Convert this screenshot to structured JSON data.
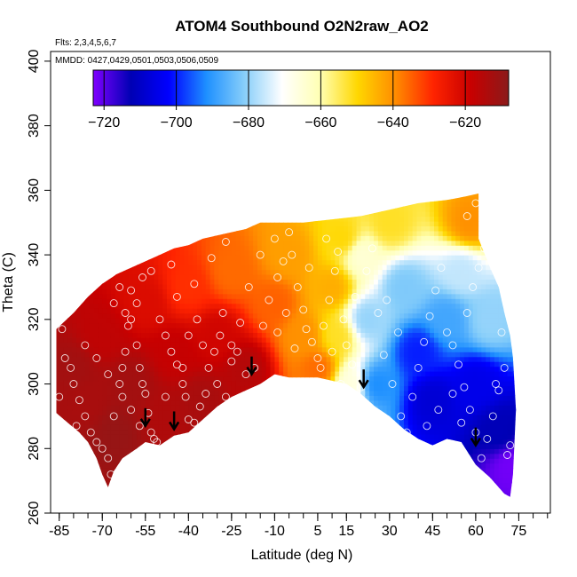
{
  "chart_data": {
    "type": "heatmap",
    "title": "ATOM4 Southbound O2N2raw_AO2",
    "flights_note": "Flts: 2,3,4,5,6,7",
    "dates_note": "MMDD: 0427,0429,0501,0503,0506,0509",
    "xlabel": "Latitude (deg N)",
    "ylabel": "Theta (C)",
    "xlim": [
      -88,
      86
    ],
    "ylim": [
      260,
      403
    ],
    "x_ticks": [
      -85,
      -70,
      -55,
      -40,
      -25,
      -10,
      5,
      15,
      30,
      45,
      60,
      75
    ],
    "x_minor_ticks": [
      -85,
      -80,
      -75,
      -70,
      -65,
      -60,
      -55,
      -50,
      -45,
      -40,
      -35,
      -30,
      -25,
      -20,
      -15,
      -10,
      -5,
      0,
      5,
      10,
      15,
      20,
      25,
      30,
      35,
      40,
      45,
      50,
      55,
      60,
      65,
      70,
      75,
      80,
      85
    ],
    "y_ticks": [
      260,
      280,
      300,
      320,
      340,
      360,
      380,
      400
    ],
    "colorbar": {
      "range": [
        -723,
        -608
      ],
      "ticks": [
        -720,
        -700,
        -680,
        -660,
        -640,
        -620
      ],
      "colors": [
        "#7f00ff",
        "#0000b4",
        "#0000ff",
        "#1e90ff",
        "#87cefa",
        "#ffffff",
        "#ffffb4",
        "#ffd700",
        "#ff8c00",
        "#ff2400",
        "#c80000",
        "#8b1a1a"
      ]
    },
    "upper_boundary": [
      [
        -86,
        317
      ],
      [
        -80,
        322
      ],
      [
        -75,
        327
      ],
      [
        -70,
        331
      ],
      [
        -65,
        334
      ],
      [
        -60,
        336
      ],
      [
        -55,
        338
      ],
      [
        -50,
        340
      ],
      [
        -45,
        342
      ],
      [
        -40,
        343
      ],
      [
        -35,
        345
      ],
      [
        -30,
        346
      ],
      [
        -25,
        347
      ],
      [
        -20,
        348
      ],
      [
        -15,
        350
      ],
      [
        -10,
        350
      ],
      [
        0,
        350
      ],
      [
        10,
        351
      ],
      [
        20,
        352
      ],
      [
        30,
        354
      ],
      [
        40,
        356
      ],
      [
        50,
        357
      ],
      [
        56,
        358
      ],
      [
        61,
        359
      ],
      [
        61,
        345
      ],
      [
        65,
        336
      ],
      [
        68,
        330
      ],
      [
        70,
        322
      ],
      [
        72,
        315
      ],
      [
        73,
        308
      ],
      [
        74,
        292
      ]
    ],
    "lower_boundary": [
      [
        -86,
        291
      ],
      [
        -82,
        288
      ],
      [
        -78,
        285
      ],
      [
        -75,
        282
      ],
      [
        -72,
        277
      ],
      [
        -70,
        272
      ],
      [
        -68,
        268
      ],
      [
        -66,
        273
      ],
      [
        -63,
        277
      ],
      [
        -58,
        280
      ],
      [
        -55,
        282
      ],
      [
        -50,
        281
      ],
      [
        -45,
        284
      ],
      [
        -40,
        285
      ],
      [
        -35,
        289
      ],
      [
        -30,
        293
      ],
      [
        -25,
        296
      ],
      [
        -20,
        298
      ],
      [
        -15,
        300
      ],
      [
        -10,
        303
      ],
      [
        -5,
        302
      ],
      [
        0,
        302
      ],
      [
        5,
        302
      ],
      [
        10,
        301
      ],
      [
        15,
        300
      ],
      [
        20,
        297
      ],
      [
        25,
        293
      ],
      [
        30,
        290
      ],
      [
        35,
        286
      ],
      [
        40,
        283
      ],
      [
        45,
        281
      ],
      [
        50,
        283
      ],
      [
        55,
        282
      ],
      [
        60,
        275
      ],
      [
        65,
        271
      ],
      [
        70,
        266
      ],
      [
        72,
        265
      ],
      [
        73,
        272
      ],
      [
        74,
        292
      ]
    ],
    "field_nodes": [
      {
        "x": -75,
        "y": 295,
        "v": -613
      },
      {
        "x": -70,
        "y": 315,
        "v": -617
      },
      {
        "x": -65,
        "y": 285,
        "v": -610
      },
      {
        "x": -60,
        "y": 300,
        "v": -612
      },
      {
        "x": -55,
        "y": 325,
        "v": -622
      },
      {
        "x": -50,
        "y": 290,
        "v": -614
      },
      {
        "x": -45,
        "y": 310,
        "v": -618
      },
      {
        "x": -40,
        "y": 330,
        "v": -630
      },
      {
        "x": -35,
        "y": 295,
        "v": -613
      },
      {
        "x": -30,
        "y": 315,
        "v": -620
      },
      {
        "x": -25,
        "y": 335,
        "v": -636
      },
      {
        "x": -20,
        "y": 305,
        "v": -615
      },
      {
        "x": -10,
        "y": 325,
        "v": -635
      },
      {
        "x": -5,
        "y": 340,
        "v": -642
      },
      {
        "x": 0,
        "y": 315,
        "v": -640
      },
      {
        "x": 5,
        "y": 305,
        "v": -636
      },
      {
        "x": 10,
        "y": 330,
        "v": -644
      },
      {
        "x": 14,
        "y": 345,
        "v": -650
      },
      {
        "x": 20,
        "y": 340,
        "v": -665
      },
      {
        "x": 22,
        "y": 320,
        "v": -680
      },
      {
        "x": 25,
        "y": 300,
        "v": -692
      },
      {
        "x": 35,
        "y": 330,
        "v": -682
      },
      {
        "x": 40,
        "y": 310,
        "v": -700
      },
      {
        "x": 45,
        "y": 295,
        "v": -708
      },
      {
        "x": 50,
        "y": 320,
        "v": -688
      },
      {
        "x": 55,
        "y": 335,
        "v": -676
      },
      {
        "x": 60,
        "y": 300,
        "v": -705
      },
      {
        "x": 65,
        "y": 320,
        "v": -680
      },
      {
        "x": 68,
        "y": 285,
        "v": -712
      },
      {
        "x": 72,
        "y": 275,
        "v": -722
      },
      {
        "x": 58,
        "y": 350,
        "v": -640
      },
      {
        "x": 30,
        "y": 350,
        "v": -652
      },
      {
        "x": -80,
        "y": 305,
        "v": -612
      },
      {
        "x": 17,
        "y": 300,
        "v": -666
      },
      {
        "x": 12,
        "y": 315,
        "v": -652
      }
    ],
    "sample_points": [
      [
        -84,
        317
      ],
      [
        -83,
        308
      ],
      [
        -81,
        305
      ],
      [
        -80,
        300
      ],
      [
        -78,
        295
      ],
      [
        -76,
        290
      ],
      [
        -74,
        285
      ],
      [
        -72,
        282
      ],
      [
        -70,
        280
      ],
      [
        -68,
        277
      ],
      [
        -67,
        272
      ],
      [
        -66,
        290
      ],
      [
        -64,
        300
      ],
      [
        -63,
        305
      ],
      [
        -62,
        310
      ],
      [
        -61,
        318
      ],
      [
        -60,
        320
      ],
      [
        -58,
        312
      ],
      [
        -57,
        305
      ],
      [
        -56,
        300
      ],
      [
        -55,
        297
      ],
      [
        -54,
        291
      ],
      [
        -53,
        285
      ],
      [
        -52,
        283
      ],
      [
        -51,
        282
      ],
      [
        -66,
        325
      ],
      [
        -64,
        330
      ],
      [
        -62,
        322
      ],
      [
        -60,
        329
      ],
      [
        -58,
        325
      ],
      [
        -56,
        333
      ],
      [
        -53,
        335
      ],
      [
        -50,
        320
      ],
      [
        -48,
        315
      ],
      [
        -46,
        310
      ],
      [
        -44,
        306
      ],
      [
        -42,
        300
      ],
      [
        -41,
        296
      ],
      [
        -40,
        289
      ],
      [
        -38,
        288
      ],
      [
        -36,
        293
      ],
      [
        -34,
        297
      ],
      [
        -31,
        310
      ],
      [
        -29,
        315
      ],
      [
        -28,
        322
      ],
      [
        -25,
        312
      ],
      [
        -22,
        319
      ],
      [
        -19,
        330
      ],
      [
        -20,
        303
      ],
      [
        -17,
        305
      ],
      [
        -14,
        318
      ],
      [
        -12,
        326
      ],
      [
        -9,
        333
      ],
      [
        -7,
        338
      ],
      [
        -5,
        347
      ],
      [
        -4,
        340
      ],
      [
        -2,
        330
      ],
      [
        0,
        323
      ],
      [
        1,
        317
      ],
      [
        3,
        313
      ],
      [
        5,
        308
      ],
      [
        7,
        318
      ],
      [
        9,
        326
      ],
      [
        11,
        335
      ],
      [
        12,
        341
      ],
      [
        14,
        320
      ],
      [
        15,
        312
      ],
      [
        13,
        300
      ],
      [
        16,
        296
      ],
      [
        18,
        292
      ],
      [
        20,
        299
      ],
      [
        17,
        306
      ],
      [
        -46,
        337
      ],
      [
        -44,
        327
      ],
      [
        -40,
        315
      ],
      [
        -37,
        320
      ],
      [
        -33,
        305
      ],
      [
        -30,
        300
      ],
      [
        -25,
        307
      ],
      [
        -23,
        310
      ],
      [
        -15,
        340
      ],
      [
        -10,
        345
      ],
      [
        -6,
        322
      ],
      [
        2,
        336
      ],
      [
        8,
        345
      ],
      [
        22,
        335
      ],
      [
        26,
        322
      ],
      [
        28,
        309
      ],
      [
        31,
        300
      ],
      [
        34,
        290
      ],
      [
        36,
        285
      ],
      [
        38,
        296
      ],
      [
        40,
        305
      ],
      [
        42,
        313
      ],
      [
        44,
        321
      ],
      [
        46,
        329
      ],
      [
        48,
        336
      ],
      [
        50,
        316
      ],
      [
        52,
        312
      ],
      [
        54,
        306
      ],
      [
        56,
        299
      ],
      [
        58,
        292
      ],
      [
        60,
        285
      ],
      [
        62,
        277
      ],
      [
        64,
        283
      ],
      [
        66,
        290
      ],
      [
        68,
        298
      ],
      [
        70,
        305
      ],
      [
        71,
        278
      ],
      [
        72,
        281
      ],
      [
        57,
        322
      ],
      [
        59,
        330
      ],
      [
        61,
        336
      ],
      [
        63,
        342
      ],
      [
        47,
        292
      ],
      [
        52,
        297
      ],
      [
        55,
        288
      ],
      [
        33,
        316
      ],
      [
        29,
        326
      ],
      [
        24,
        342
      ],
      [
        18,
        327
      ],
      [
        -70,
        262
      ],
      [
        -73,
        269
      ],
      [
        -79,
        287
      ],
      [
        -85,
        296
      ],
      [
        -76,
        312
      ],
      [
        -72,
        308
      ],
      [
        -68,
        303
      ],
      [
        -63,
        296
      ],
      [
        -60,
        292
      ],
      [
        -57,
        287
      ],
      [
        -48,
        296
      ],
      [
        -42,
        305
      ],
      [
        -35,
        312
      ],
      [
        -27,
        296
      ],
      [
        -24,
        291
      ],
      [
        -38,
        331
      ],
      [
        -32,
        339
      ],
      [
        -27,
        344
      ],
      [
        -9,
        316
      ],
      [
        -3,
        311
      ],
      [
        6,
        305
      ],
      [
        10,
        310
      ],
      [
        60,
        356
      ],
      [
        57,
        352
      ],
      [
        43,
        287
      ],
      [
        38,
        278
      ],
      [
        27,
        285
      ],
      [
        67,
        300
      ],
      [
        69,
        316
      ]
    ],
    "arrows": [
      [
        -55,
        287
      ],
      [
        -45,
        286
      ],
      [
        -18,
        303
      ],
      [
        21,
        299
      ],
      [
        60,
        281
      ]
    ]
  }
}
